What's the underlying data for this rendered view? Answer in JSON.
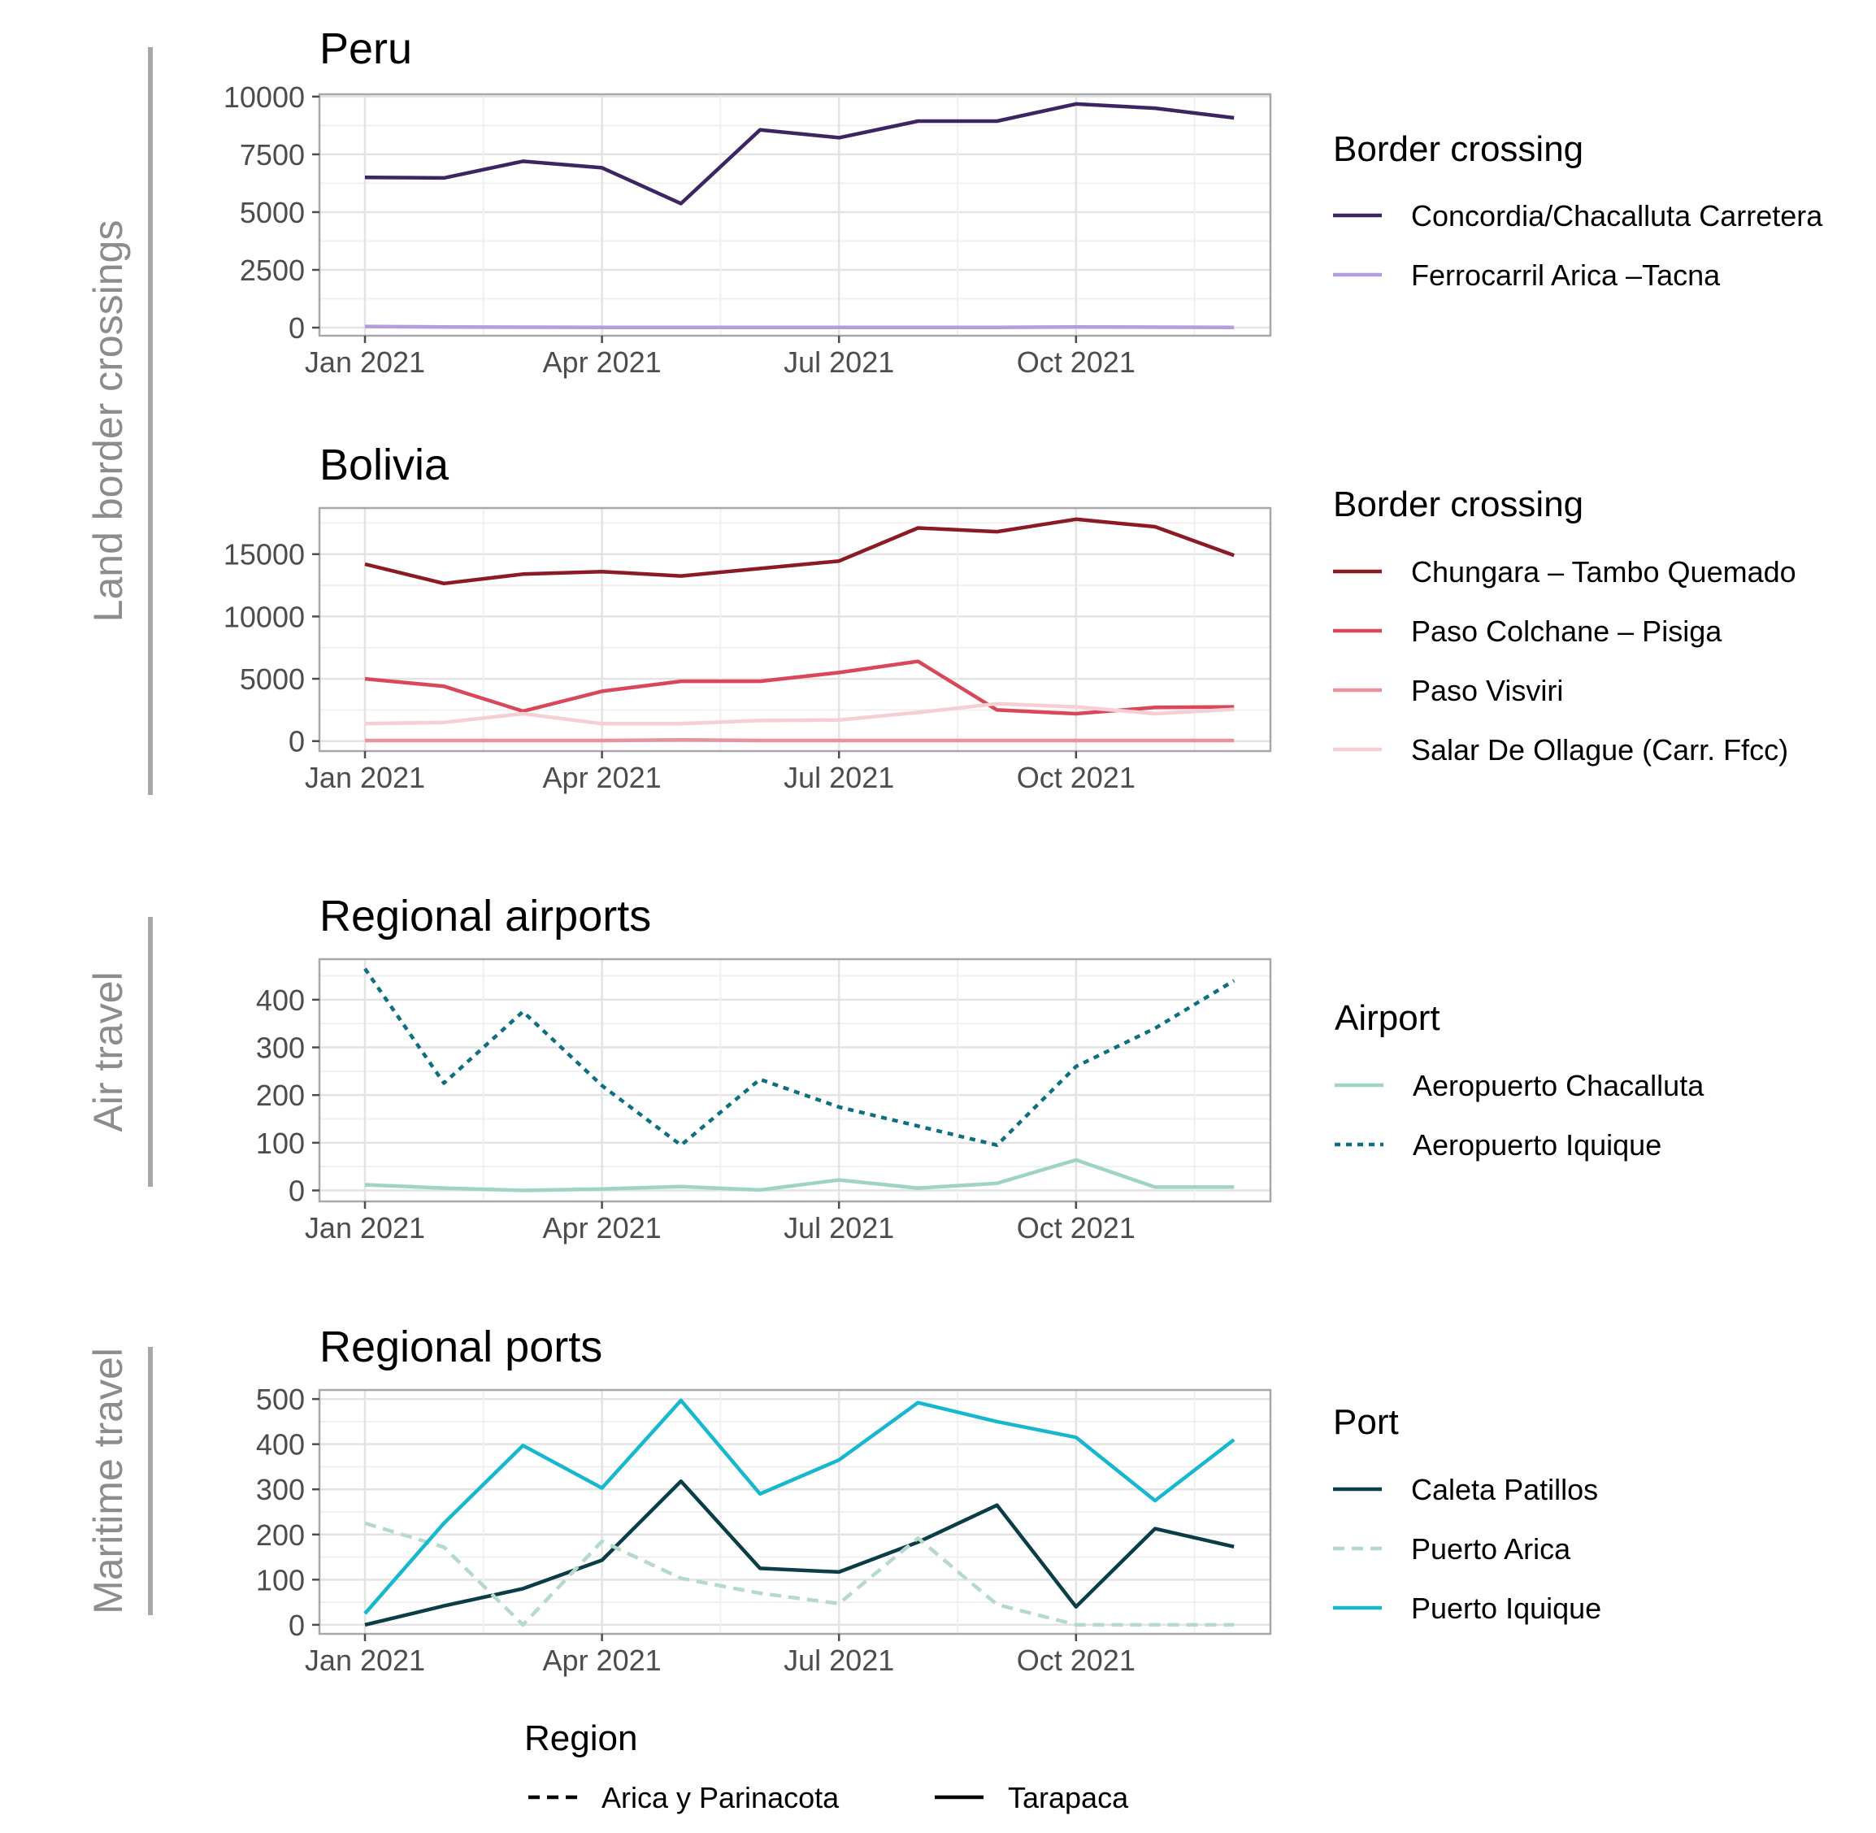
{
  "chart_data": [
    {
      "type": "line",
      "group": "land",
      "title": "Peru",
      "x": [
        "Jan 2021",
        "Feb 2021",
        "Mar 2021",
        "Apr 2021",
        "May 2021",
        "Jun 2021",
        "Jul 2021",
        "Aug 2021",
        "Sep 2021",
        "Oct 2021",
        "Nov 2021",
        "Dec 2021"
      ],
      "x_ticks": [
        "Jan 2021",
        "Apr 2021",
        "Jul 2021",
        "Oct 2021"
      ],
      "ylim": [
        -350,
        10100
      ],
      "y_ticks": [
        0,
        2500,
        5000,
        7500,
        10000
      ],
      "grid": true,
      "legend": {
        "title": "Border crossing",
        "placement": "right"
      },
      "series": [
        {
          "name": "Concordia/Chacalluta Carretera",
          "color": "#3d2563",
          "dash": "solid",
          "values": [
            6500,
            6480,
            7200,
            6920,
            5370,
            8560,
            8220,
            8940,
            8940,
            9680,
            9500,
            9080
          ]
        },
        {
          "name": "Ferrocarril Arica –Tacna",
          "color": "#b39ddb",
          "dash": "solid",
          "values": [
            50,
            30,
            20,
            10,
            10,
            10,
            10,
            10,
            10,
            30,
            20,
            10
          ]
        }
      ]
    },
    {
      "type": "line",
      "group": "land",
      "title": "Bolivia",
      "x": [
        "Jan 2021",
        "Feb 2021",
        "Mar 2021",
        "Apr 2021",
        "May 2021",
        "Jun 2021",
        "Jul 2021",
        "Aug 2021",
        "Sep 2021",
        "Oct 2021",
        "Nov 2021",
        "Dec 2021"
      ],
      "x_ticks": [
        "Jan 2021",
        "Apr 2021",
        "Jul 2021",
        "Oct 2021"
      ],
      "ylim": [
        -800,
        18700
      ],
      "y_ticks": [
        0,
        5000,
        10000,
        15000
      ],
      "grid": true,
      "legend": {
        "title": "Border crossing",
        "placement": "right"
      },
      "series": [
        {
          "name": "Chungara – Tambo Quemado",
          "color": "#8b1a24",
          "dash": "solid",
          "values": [
            14200,
            12650,
            13400,
            13600,
            13250,
            13850,
            14450,
            17100,
            16800,
            17800,
            17200,
            14900
          ]
        },
        {
          "name": "Paso Colchane – Pisiga",
          "color": "#d9485a",
          "dash": "solid",
          "values": [
            5000,
            4400,
            2400,
            4000,
            4800,
            4800,
            5500,
            6400,
            2500,
            2200,
            2700,
            2750
          ]
        },
        {
          "name": "Paso Visviri",
          "color": "#e8939b",
          "dash": "solid",
          "values": [
            50,
            50,
            50,
            50,
            100,
            50,
            50,
            50,
            50,
            50,
            50,
            50
          ]
        },
        {
          "name": "Salar De Ollague (Carr. Ffcc)",
          "color": "#f5cfd3",
          "dash": "solid",
          "values": [
            1400,
            1500,
            2200,
            1400,
            1400,
            1650,
            1700,
            2300,
            3000,
            2750,
            2200,
            2550
          ]
        }
      ]
    },
    {
      "type": "line",
      "group": "air",
      "title": "Regional airports",
      "x": [
        "Jan 2021",
        "Feb 2021",
        "Mar 2021",
        "Apr 2021",
        "May 2021",
        "Jun 2021",
        "Jul 2021",
        "Aug 2021",
        "Sep 2021",
        "Oct 2021",
        "Nov 2021",
        "Dec 2021"
      ],
      "x_ticks": [
        "Jan 2021",
        "Apr 2021",
        "Jul 2021",
        "Oct 2021"
      ],
      "ylim": [
        -23,
        485
      ],
      "y_ticks": [
        0,
        100,
        200,
        300,
        400
      ],
      "grid": true,
      "legend": {
        "title": "Airport",
        "placement": "right"
      },
      "series": [
        {
          "name": "Aeropuerto Chacalluta",
          "color": "#9fd3c7",
          "dash": "solid",
          "values": [
            12,
            5,
            0,
            3,
            8,
            1,
            22,
            5,
            15,
            64,
            7,
            7
          ]
        },
        {
          "name": "Aeropuerto Iquique",
          "color": "#0e6f80",
          "dash": "dotted",
          "values": [
            465,
            225,
            375,
            220,
            95,
            233,
            175,
            135,
            95,
            260,
            340,
            440
          ]
        }
      ]
    },
    {
      "type": "line",
      "group": "maritime",
      "title": "Regional ports",
      "x": [
        "Jan 2021",
        "Feb 2021",
        "Mar 2021",
        "Apr 2021",
        "May 2021",
        "Jun 2021",
        "Jul 2021",
        "Aug 2021",
        "Sep 2021",
        "Oct 2021",
        "Nov 2021",
        "Dec 2021"
      ],
      "x_ticks": [
        "Jan 2021",
        "Apr 2021",
        "Jul 2021",
        "Oct 2021"
      ],
      "ylim": [
        -20,
        520
      ],
      "y_ticks": [
        0,
        100,
        200,
        300,
        400,
        500
      ],
      "grid": true,
      "legend": {
        "title": "Port",
        "placement": "right"
      },
      "series": [
        {
          "name": "Caleta Patillos",
          "color": "#0a3d45",
          "dash": "solid",
          "values": [
            0,
            42,
            80,
            143,
            318,
            125,
            117,
            183,
            265,
            40,
            213,
            173
          ]
        },
        {
          "name": "Puerto Arica",
          "color": "#b5d9cd",
          "dash": "dashed",
          "values": [
            225,
            172,
            0,
            185,
            103,
            70,
            47,
            192,
            45,
            0,
            0,
            0
          ]
        },
        {
          "name": "Puerto Iquique",
          "color": "#17b8cf",
          "dash": "solid",
          "values": [
            25,
            225,
            397,
            303,
            497,
            290,
            365,
            492,
            450,
            415,
            275,
            410
          ]
        }
      ]
    }
  ],
  "group_labels": {
    "land": "Land border crossings",
    "air": "Air travel",
    "maritime": "Maritime travel"
  },
  "region_legend": {
    "title": "Region",
    "items": [
      {
        "name": "Arica y Parinacota",
        "dash": "dashed",
        "color": "#000000"
      },
      {
        "name": "Tarapaca",
        "dash": "solid",
        "color": "#000000"
      }
    ]
  }
}
